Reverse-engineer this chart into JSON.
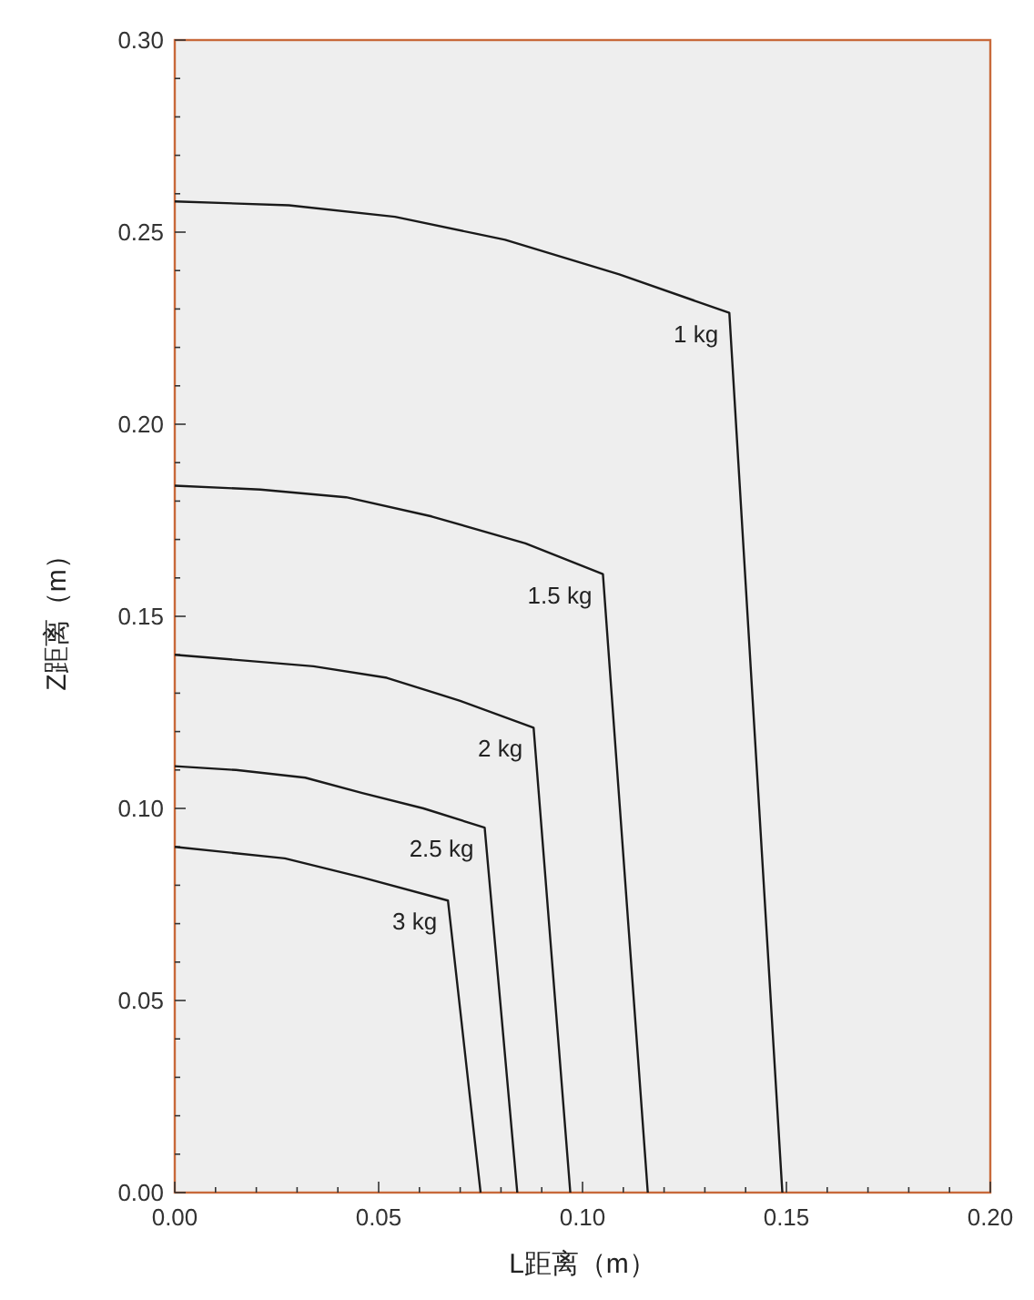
{
  "chart_data": {
    "type": "line",
    "xlabel": "L距离（m）",
    "ylabel": "Z距离（m）",
    "xlim": [
      0,
      0.2
    ],
    "ylim": [
      0,
      0.3
    ],
    "xticks": [
      {
        "value": 0,
        "label": "0.00"
      },
      {
        "value": 0.01,
        "label": null
      },
      {
        "value": 0.02,
        "label": null
      },
      {
        "value": 0.03,
        "label": null
      },
      {
        "value": 0.04,
        "label": null
      },
      {
        "value": 0.05,
        "label": "0.05"
      },
      {
        "value": 0.06,
        "label": null
      },
      {
        "value": 0.07,
        "label": null
      },
      {
        "value": 0.08,
        "label": null
      },
      {
        "value": 0.09,
        "label": null
      },
      {
        "value": 0.1,
        "label": "0.10"
      },
      {
        "value": 0.11,
        "label": null
      },
      {
        "value": 0.12,
        "label": null
      },
      {
        "value": 0.13,
        "label": null
      },
      {
        "value": 0.14,
        "label": null
      },
      {
        "value": 0.15,
        "label": "0.15"
      },
      {
        "value": 0.16,
        "label": null
      },
      {
        "value": 0.17,
        "label": null
      },
      {
        "value": 0.18,
        "label": null
      },
      {
        "value": 0.19,
        "label": null
      },
      {
        "value": 0.2,
        "label": "0.20"
      }
    ],
    "yticks": [
      {
        "value": 0,
        "label": "0.00"
      },
      {
        "value": 0.01,
        "label": null
      },
      {
        "value": 0.02,
        "label": null
      },
      {
        "value": 0.03,
        "label": null
      },
      {
        "value": 0.04,
        "label": null
      },
      {
        "value": 0.05,
        "label": "0.05"
      },
      {
        "value": 0.06,
        "label": null
      },
      {
        "value": 0.07,
        "label": null
      },
      {
        "value": 0.08,
        "label": null
      },
      {
        "value": 0.09,
        "label": null
      },
      {
        "value": 0.1,
        "label": "0.10"
      },
      {
        "value": 0.11,
        "label": null
      },
      {
        "value": 0.12,
        "label": null
      },
      {
        "value": 0.13,
        "label": null
      },
      {
        "value": 0.14,
        "label": null
      },
      {
        "value": 0.15,
        "label": "0.15"
      },
      {
        "value": 0.16,
        "label": null
      },
      {
        "value": 0.17,
        "label": null
      },
      {
        "value": 0.18,
        "label": null
      },
      {
        "value": 0.19,
        "label": null
      },
      {
        "value": 0.2,
        "label": "0.20"
      },
      {
        "value": 0.21,
        "label": null
      },
      {
        "value": 0.22,
        "label": null
      },
      {
        "value": 0.23,
        "label": null
      },
      {
        "value": 0.24,
        "label": null
      },
      {
        "value": 0.25,
        "label": "0.25"
      },
      {
        "value": 0.26,
        "label": null
      },
      {
        "value": 0.27,
        "label": null
      },
      {
        "value": 0.28,
        "label": null
      },
      {
        "value": 0.29,
        "label": null
      },
      {
        "value": 0.3,
        "label": "0.30"
      }
    ],
    "series": [
      {
        "name": "1 kg",
        "color": "#1a1a1a",
        "x": [
          0,
          0.028,
          0.054,
          0.081,
          0.109,
          0.136,
          0.149
        ],
        "values": [
          0.258,
          0.257,
          0.254,
          0.248,
          0.239,
          0.229,
          0
        ]
      },
      {
        "name": "1.5 kg",
        "color": "#1a1a1a",
        "x": [
          0,
          0.021,
          0.042,
          0.063,
          0.086,
          0.105,
          0.116
        ],
        "values": [
          0.184,
          0.183,
          0.181,
          0.176,
          0.169,
          0.161,
          0
        ]
      },
      {
        "name": "2 kg",
        "color": "#1a1a1a",
        "x": [
          0,
          0.034,
          0.052,
          0.07,
          0.088,
          0.097
        ],
        "values": [
          0.14,
          0.137,
          0.134,
          0.128,
          0.121,
          0
        ]
      },
      {
        "name": "2.5 kg",
        "color": "#1a1a1a",
        "x": [
          0,
          0.015,
          0.032,
          0.046,
          0.061,
          0.076,
          0.084
        ],
        "values": [
          0.111,
          0.11,
          0.108,
          0.104,
          0.1,
          0.095,
          0
        ]
      },
      {
        "name": "3 kg",
        "color": "#1a1a1a",
        "x": [
          0,
          0.027,
          0.046,
          0.067,
          0.075
        ],
        "values": [
          0.09,
          0.087,
          0.082,
          0.076,
          0
        ]
      }
    ]
  }
}
